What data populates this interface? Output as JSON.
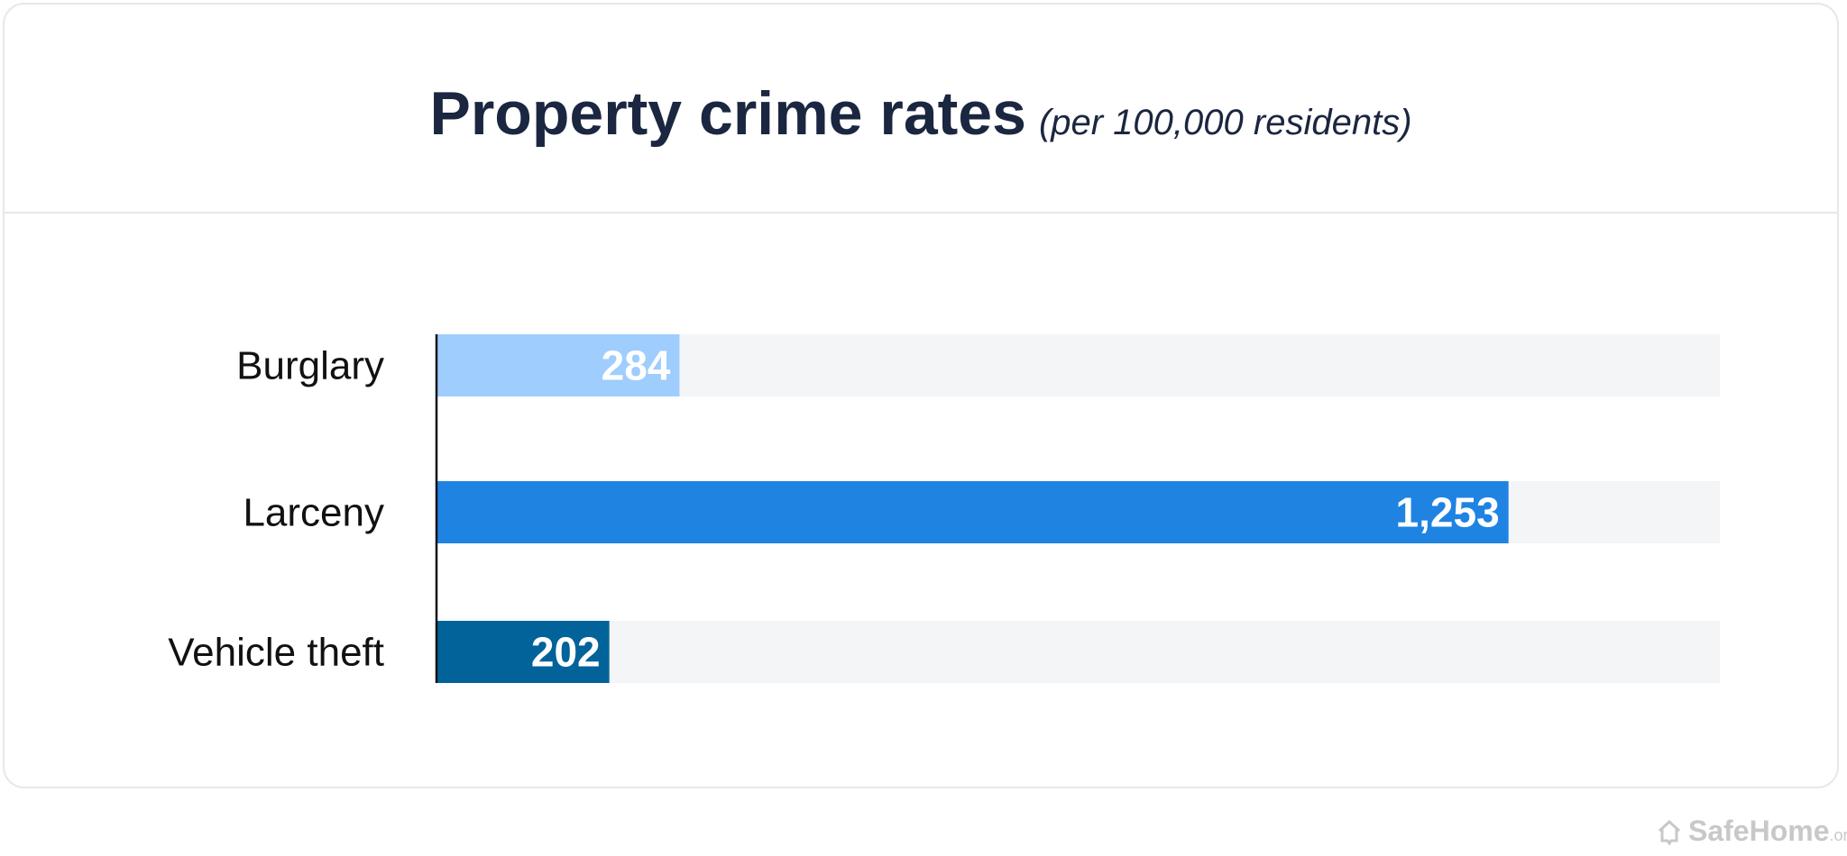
{
  "chart_data": {
    "type": "bar",
    "orientation": "horizontal",
    "title": "Property crime rates",
    "subtitle": "(per 100,000 residents)",
    "categories": [
      "Burglary",
      "Larceny",
      "Vehicle theft"
    ],
    "values": [
      284,
      1253,
      202
    ],
    "value_labels": [
      "284",
      "1,253",
      "202"
    ],
    "colors": [
      "#9fcdfd",
      "#1f83e2",
      "#016399"
    ],
    "track_color": "#f4f5f7",
    "xlim": [
      0,
      1500
    ],
    "grid": false
  },
  "logo": {
    "name": "SafeHome",
    "suffix": ".org",
    "icon": "house-icon"
  }
}
